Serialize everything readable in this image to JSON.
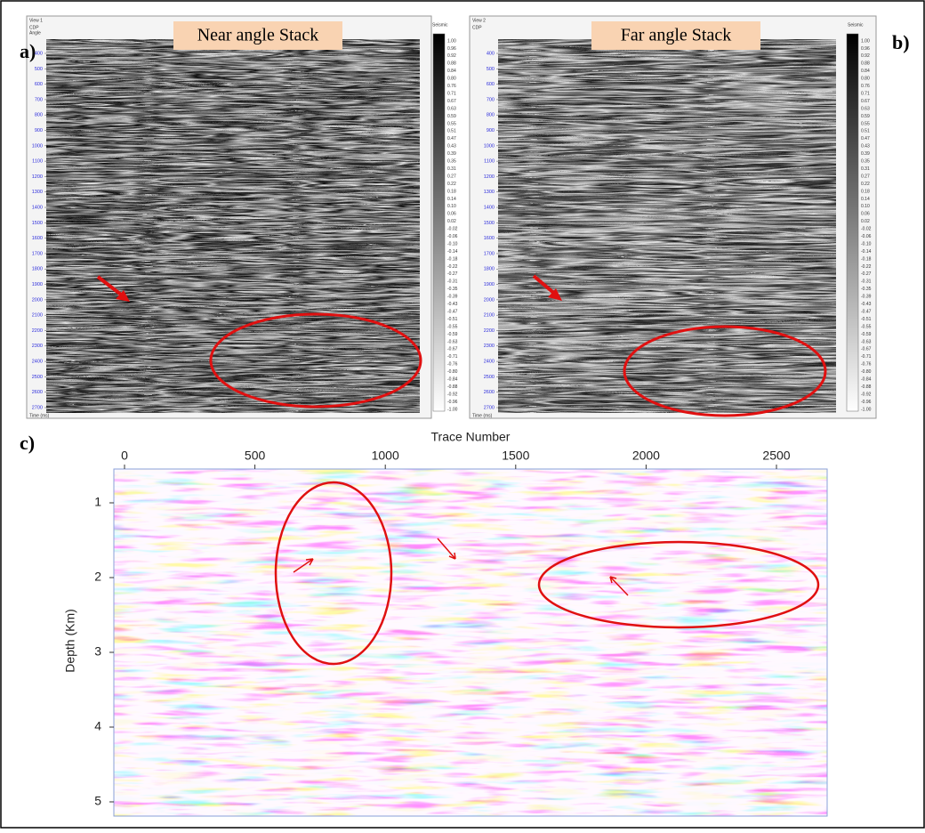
{
  "panels": [
    {
      "label": "a)",
      "title": "Near angle Stack",
      "view": "View 1",
      "header": [
        "CDP",
        "Angle"
      ],
      "colorbar_title": "Seismic",
      "axis_title": "Time (ms)",
      "time_ticks": [
        400,
        500,
        600,
        700,
        800,
        900,
        1000,
        1100,
        1200,
        1300,
        1400,
        1500,
        1600,
        1700,
        1800,
        1900,
        2000,
        2100,
        2200,
        2300,
        2400,
        2500,
        2600,
        2700
      ],
      "colorbar_ticks": [
        "1.00",
        "0.96",
        "0.92",
        "0.88",
        "0.84",
        "0.80",
        "0.76",
        "0.71",
        "0.67",
        "0.63",
        "0.59",
        "0.55",
        "0.51",
        "0.47",
        "0.43",
        "0.39",
        "0.35",
        "0.31",
        "0.27",
        "0.22",
        "0.18",
        "0.14",
        "0.10",
        "0.06",
        "0.02",
        "-0.02",
        "-0.06",
        "-0.10",
        "-0.14",
        "-0.18",
        "-0.22",
        "-0.27",
        "-0.31",
        "-0.35",
        "-0.39",
        "-0.43",
        "-0.47",
        "-0.51",
        "-0.55",
        "-0.59",
        "-0.63",
        "-0.67",
        "-0.71",
        "-0.76",
        "-0.80",
        "-0.84",
        "-0.88",
        "-0.92",
        "-0.96",
        "-1.00"
      ]
    },
    {
      "label": "b)",
      "title": "Far angle Stack",
      "view": "View 2",
      "header": [
        "CDP"
      ],
      "colorbar_title": "Seismic",
      "axis_title": "Time (ms)",
      "time_ticks": [
        400,
        500,
        600,
        700,
        800,
        900,
        1000,
        1100,
        1200,
        1300,
        1400,
        1500,
        1600,
        1700,
        1800,
        1900,
        2000,
        2100,
        2200,
        2300,
        2400,
        2500,
        2600,
        2700
      ],
      "colorbar_ticks": [
        "1.00",
        "0.96",
        "0.92",
        "0.88",
        "0.84",
        "0.80",
        "0.76",
        "0.71",
        "0.67",
        "0.63",
        "0.59",
        "0.55",
        "0.51",
        "0.47",
        "0.43",
        "0.39",
        "0.35",
        "0.31",
        "0.27",
        "0.22",
        "0.18",
        "0.14",
        "0.10",
        "0.06",
        "0.02",
        "-0.02",
        "-0.06",
        "-0.10",
        "-0.14",
        "-0.18",
        "-0.22",
        "-0.27",
        "-0.31",
        "-0.35",
        "-0.39",
        "-0.43",
        "-0.47",
        "-0.51",
        "-0.55",
        "-0.59",
        "-0.63",
        "-0.67",
        "-0.71",
        "-0.76",
        "-0.80",
        "-0.84",
        "-0.88",
        "-0.92",
        "-0.96",
        "-1.00"
      ]
    }
  ],
  "panel_c": {
    "label": "c)",
    "x_title": "Trace Number",
    "y_title": "Depth (Km)",
    "xticks": [
      0,
      500,
      1000,
      1500,
      2000,
      2500
    ],
    "yticks": [
      1,
      2,
      3,
      4,
      5
    ]
  }
}
